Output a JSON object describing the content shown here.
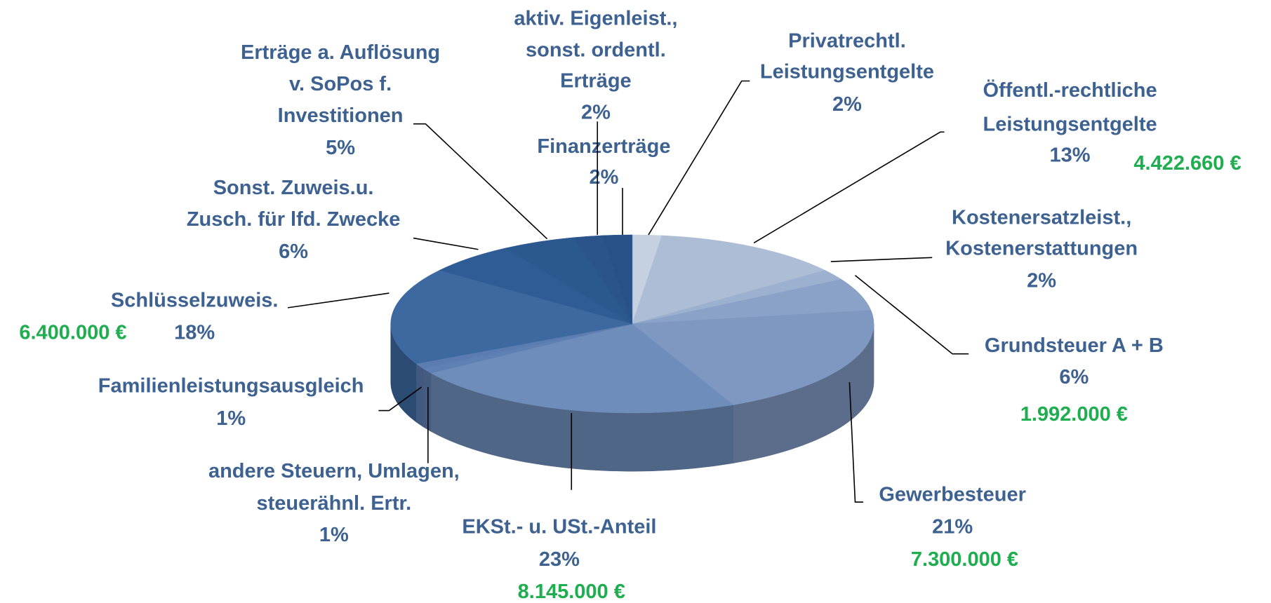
{
  "chart_data": {
    "type": "pie3d",
    "categories": [
      [
        "Privatrechtl.",
        "Leistungsentgelte"
      ],
      [
        "Öffentl.-rechtliche",
        "Leistungsentgelte"
      ],
      [
        "Kostenersatzleist.,",
        "Kostenerstattungen"
      ],
      [
        "Grundsteuer A + B"
      ],
      [
        "Gewerbesteuer"
      ],
      [
        "EKSt.- u. USt.-Anteil"
      ],
      [
        "andere Steuern, Umlagen,",
        "steuerähnl. Ertr."
      ],
      [
        "Familienleistungsausgleich"
      ],
      [
        "Schlüsselzuweis."
      ],
      [
        "Sonst. Zuweis.u.",
        "Zusch. für lfd. Zwecke"
      ],
      [
        "Erträge a. Auflösung",
        "v. SoPos f.",
        "Investitionen"
      ],
      [
        "Finanzerträge"
      ],
      [
        "aktiv. Eigenleist.,",
        "sonst. ordentl.",
        "Erträge"
      ]
    ],
    "values": [
      2,
      13,
      2,
      6,
      21,
      23,
      1,
      1,
      18,
      6,
      5,
      2,
      2
    ],
    "value_labels": [
      "2%",
      "13%",
      "2%",
      "6%",
      "21%",
      "23%",
      "1%",
      "1%",
      "18%",
      "6%",
      "5%",
      "2%",
      "2%"
    ],
    "amounts": [
      null,
      4422660,
      null,
      1992000,
      7300000,
      8145000,
      null,
      null,
      6400000,
      null,
      null,
      null,
      null
    ],
    "amount_labels": [
      null,
      "4.422.660 €",
      null,
      "1.992.000 €",
      "7.300.000 €",
      "8.145.000 €",
      null,
      null,
      "6.400.000 €",
      null,
      null,
      null,
      null
    ],
    "colors": [
      "#c5d0e0",
      "#aebdd6",
      "#9cb0cf",
      "#8aa2c8",
      "#7e98c1",
      "#6f8dbb",
      "#5f80b2",
      "#5a7cb0",
      "#3d68a0",
      "#305c95",
      "#2c5890",
      "#2a548b",
      "#28518a"
    ]
  }
}
